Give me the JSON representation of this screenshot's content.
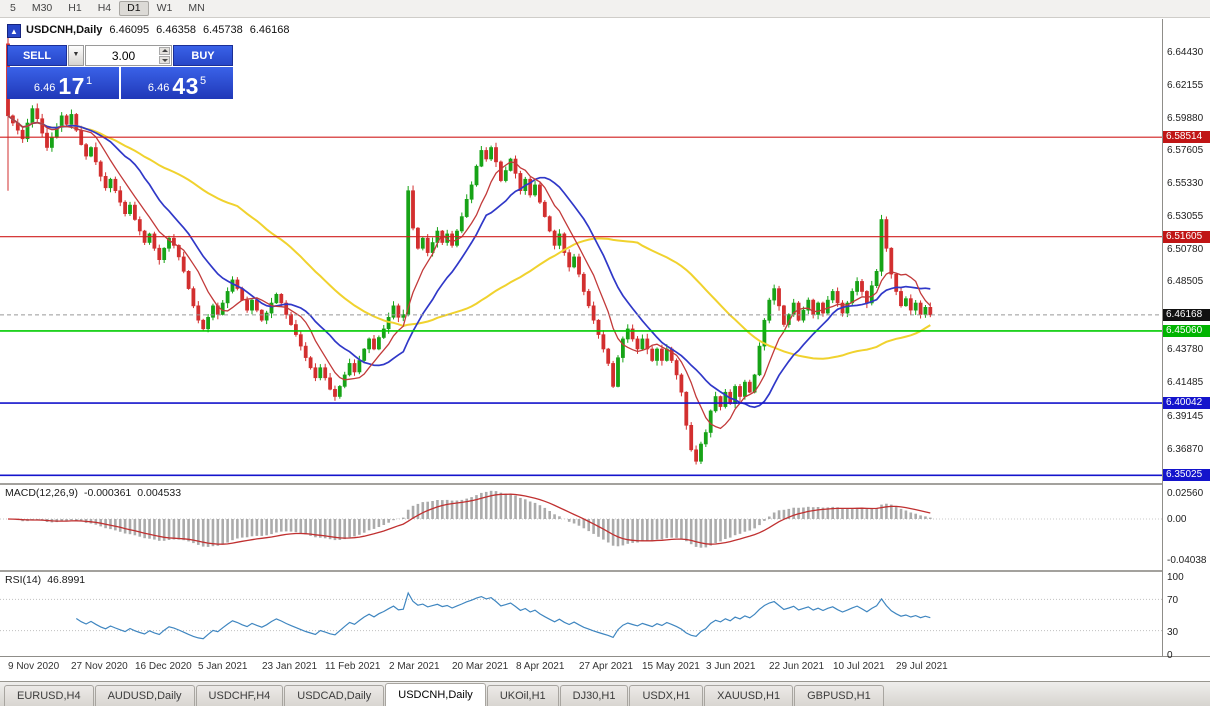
{
  "toolbar": {
    "timeframes": [
      {
        "label": "5",
        "active": false
      },
      {
        "label": "M30",
        "active": false
      },
      {
        "label": "H1",
        "active": false
      },
      {
        "label": "H4",
        "active": false
      },
      {
        "label": "D1",
        "active": true
      },
      {
        "label": "W1",
        "active": false
      },
      {
        "label": "MN",
        "active": false
      }
    ]
  },
  "chart": {
    "symbol": "USDCNH,Daily",
    "open": "6.46095",
    "high": "6.46358",
    "low": "6.45738",
    "close": "6.46168",
    "collapse_arrow": "▲"
  },
  "trade_panel": {
    "sell_label": "SELL",
    "buy_label": "BUY",
    "volume": "3.00",
    "dropdown_arrow": "▼",
    "bid": {
      "small": "6.46",
      "big": "17",
      "sup": "1"
    },
    "ask": {
      "small": "6.46",
      "big": "43",
      "sup": "5"
    }
  },
  "price_axis": {
    "ticks": [
      {
        "label": "6.64430",
        "price": 6.6443
      },
      {
        "label": "6.62155",
        "price": 6.62155
      },
      {
        "label": "6.59880",
        "price": 6.5988
      },
      {
        "label": "6.57605",
        "price": 6.57605
      },
      {
        "label": "6.55330",
        "price": 6.5533
      },
      {
        "label": "6.53055",
        "price": 6.53055
      },
      {
        "label": "6.50780",
        "price": 6.5078
      },
      {
        "label": "6.48505",
        "price": 6.48505
      },
      {
        "label": "6.43780",
        "price": 6.4378
      },
      {
        "label": "6.41485",
        "price": 6.41485
      },
      {
        "label": "6.39145",
        "price": 6.39145
      },
      {
        "label": "6.36870",
        "price": 6.3687
      }
    ],
    "badges": [
      {
        "label": "6.58514",
        "price": 6.58514,
        "bg": "#c01515"
      },
      {
        "label": "6.51605",
        "price": 6.51605,
        "bg": "#c01515"
      },
      {
        "label": "6.46168",
        "price": 6.46168,
        "bg": "#111111"
      },
      {
        "label": "6.45060",
        "price": 6.4506,
        "bg": "#00b400"
      },
      {
        "label": "6.40042",
        "price": 6.40042,
        "bg": "#1414cc"
      },
      {
        "label": "6.35025",
        "price": 6.35025,
        "bg": "#1414cc"
      }
    ]
  },
  "macd": {
    "name": "MACD(12,26,9)",
    "value_main": "-0.000361",
    "value_signal": "0.004533",
    "axis": [
      {
        "label": "0.02560",
        "value": 0.0256
      },
      {
        "label": "0.00",
        "value": 0
      },
      {
        "label": "-0.04038",
        "value": -0.04038
      }
    ]
  },
  "rsi": {
    "name": "RSI(14)",
    "value": "46.8991",
    "axis": [
      {
        "label": "100",
        "value": 100
      },
      {
        "label": "70",
        "value": 70
      },
      {
        "label": "30",
        "value": 30
      },
      {
        "label": "0",
        "value": 0
      }
    ]
  },
  "dates": [
    "9 Nov 2020",
    "27 Nov 2020",
    "16 Dec 2020",
    "5 Jan 2021",
    "23 Jan 2021",
    "11 Feb 2021",
    "2 Mar 2021",
    "20 Mar 2021",
    "8 Apr 2021",
    "27 Apr 2021",
    "15 May 2021",
    "3 Jun 2021",
    "22 Jun 2021",
    "10 Jul 2021",
    "29 Jul 2021"
  ],
  "tabs": {
    "items": [
      {
        "label": "EURUSD,H4",
        "active": false
      },
      {
        "label": "AUDUSD,Daily",
        "active": false
      },
      {
        "label": "USDCHF,H4",
        "active": false
      },
      {
        "label": "USDCAD,Daily",
        "active": false
      },
      {
        "label": "USDCNH,Daily",
        "active": true
      },
      {
        "label": "UKOil,H1",
        "active": false
      },
      {
        "label": "DJ30,H1",
        "active": false
      },
      {
        "label": "USDX,H1",
        "active": false
      },
      {
        "label": "XAUUSD,H1",
        "active": false
      },
      {
        "label": "GBPUSD,H1",
        "active": false
      }
    ]
  },
  "colors": {
    "candle_up": "#17a317",
    "candle_down": "#d22f2f",
    "ma_fast_red": "#c23a3a",
    "ma_mid_blue": "#3038c8",
    "ma_slow_yellow": "#f0d22e",
    "macd_hist": "#ababab",
    "macd_signal": "#c03030",
    "rsi_line": "#3f86c0",
    "trade_blue": "#2b4ad2"
  },
  "chart_data": {
    "type": "candlestick",
    "symbol": "USDCNH",
    "timeframe": "Daily",
    "ohlc_current": {
      "open": 6.46095,
      "high": 6.46358,
      "low": 6.45738,
      "close": 6.46168
    },
    "current_price": 6.46168,
    "y_range": [
      6.3477,
      6.6617
    ],
    "levels": [
      {
        "price": 6.58514,
        "color": "#d01f1f",
        "width": 1.2
      },
      {
        "price": 6.51605,
        "color": "#d01f1f",
        "width": 1.2
      },
      {
        "price": 6.4506,
        "color": "#00cc00",
        "width": 1.6
      },
      {
        "price": 6.40042,
        "color": "#1414cc",
        "width": 1.6
      },
      {
        "price": 6.35025,
        "color": "#1414cc",
        "width": 1.6
      }
    ],
    "ma_periods": {
      "fast_red": 8,
      "mid_blue": 17,
      "slow_yellow": 48
    },
    "indicators": {
      "macd": "12,26,9",
      "rsi": "14"
    },
    "first_candle": {
      "open": 6.65,
      "high": 6.658,
      "low": 6.548,
      "close": 6.6
    },
    "closes": [
      6.6,
      6.595,
      6.59,
      6.584,
      6.595,
      6.605,
      6.598,
      6.588,
      6.578,
      6.585,
      6.592,
      6.6,
      6.594,
      6.601,
      6.59,
      6.58,
      6.572,
      6.578,
      6.568,
      6.558,
      6.55,
      6.556,
      6.548,
      6.54,
      6.532,
      6.538,
      6.528,
      6.52,
      6.512,
      6.518,
      6.508,
      6.5,
      6.508,
      6.515,
      6.51,
      6.502,
      6.492,
      6.48,
      6.468,
      6.458,
      6.452,
      6.46,
      6.468,
      6.462,
      6.47,
      6.478,
      6.486,
      6.48,
      6.472,
      6.465,
      6.472,
      6.465,
      6.458,
      6.463,
      6.47,
      6.476,
      6.47,
      6.462,
      6.455,
      6.448,
      6.44,
      6.432,
      6.425,
      6.418,
      6.425,
      6.418,
      6.41,
      6.405,
      6.412,
      6.42,
      6.428,
      6.422,
      6.43,
      6.438,
      6.445,
      6.438,
      6.446,
      6.452,
      6.46,
      6.468,
      6.46,
      6.462,
      6.548,
      6.522,
      6.508,
      6.515,
      6.505,
      6.512,
      6.52,
      6.512,
      6.518,
      6.51,
      6.52,
      6.53,
      6.542,
      6.552,
      6.565,
      6.576,
      6.57,
      6.578,
      6.568,
      6.555,
      6.562,
      6.57,
      6.56,
      6.548,
      6.556,
      6.545,
      6.552,
      6.54,
      6.53,
      6.52,
      6.51,
      6.518,
      6.505,
      6.495,
      6.502,
      6.49,
      6.478,
      6.468,
      6.458,
      6.448,
      6.438,
      6.428,
      6.412,
      6.432,
      6.445,
      6.452,
      6.445,
      6.438,
      6.445,
      6.438,
      6.43,
      6.438,
      6.43,
      6.438,
      6.43,
      6.42,
      6.408,
      6.385,
      6.368,
      6.36,
      6.372,
      6.38,
      6.395,
      6.405,
      6.398,
      6.408,
      6.4,
      6.412,
      6.405,
      6.415,
      6.408,
      6.42,
      6.44,
      6.458,
      6.472,
      6.48,
      6.468,
      6.455,
      6.462,
      6.47,
      6.458,
      6.465,
      6.472,
      6.462,
      6.47,
      6.463,
      6.472,
      6.478,
      6.47,
      6.463,
      6.47,
      6.478,
      6.485,
      6.478,
      6.47,
      6.482,
      6.492,
      6.528,
      6.508,
      6.49,
      6.478,
      6.468,
      6.473,
      6.465,
      6.47,
      6.462,
      6.467,
      6.4617
    ]
  }
}
